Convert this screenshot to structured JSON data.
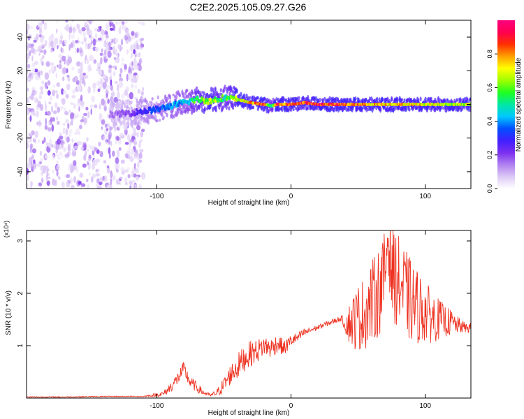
{
  "title": "C2E2.2025.105.09.27.G26",
  "colors": {
    "snr_line": "#ee3322",
    "axis": "#000000",
    "background": "#ffffff"
  },
  "chart_data": [
    {
      "type": "heatmap",
      "title": "C2E2.2025.105.09.27.G26",
      "xlabel": "Height of straight line (km)",
      "ylabel": "Frequency (Hz)",
      "xlim": [
        -197,
        134
      ],
      "ylim": [
        -50,
        50
      ],
      "xticks": [
        -100,
        0,
        100
      ],
      "xtick_labels": [
        "-100",
        "0",
        "100"
      ],
      "yticks": [
        40,
        20,
        0,
        -20,
        -40
      ],
      "ytick_labels": [
        "40",
        "20",
        "0",
        "-20",
        "-40"
      ],
      "colorbar": {
        "label": "Normalized spectral amplitude",
        "range": [
          0,
          1
        ],
        "ticks": [
          0.0,
          0.2,
          0.4,
          0.6,
          0.8
        ],
        "tick_labels": [
          "0.0",
          "0.2",
          "0.4",
          "0.6",
          "0.8"
        ],
        "colormap": [
          "#ffffff",
          "#dcc8f5",
          "#b080f0",
          "#7b2ff0",
          "#4020ff",
          "#0050ff",
          "#00c8ff",
          "#00e8a0",
          "#20ff20",
          "#a0ff00",
          "#ffff00",
          "#ffa000",
          "#ff3000",
          "#ff0050",
          "#ff0080"
        ]
      },
      "ridge": {
        "x": [
          -135,
          -120,
          -110,
          -100,
          -90,
          -80,
          -70,
          -60,
          -50,
          -40,
          -30,
          -20,
          -15,
          -10,
          0,
          10,
          20,
          40,
          60,
          80,
          100,
          120,
          134
        ],
        "frequency": [
          -6,
          -5,
          -4,
          -3,
          -1,
          1,
          3,
          2,
          4,
          3,
          1,
          0,
          -1,
          0,
          0,
          1,
          0,
          0,
          0,
          0,
          0,
          0,
          0
        ],
        "amplitude": [
          0.15,
          0.2,
          0.3,
          0.35,
          0.4,
          0.45,
          0.6,
          0.7,
          0.55,
          0.7,
          0.8,
          0.9,
          0.5,
          0.9,
          0.85,
          0.9,
          0.95,
          0.85,
          0.8,
          0.8,
          0.75,
          0.7,
          0.7
        ]
      },
      "noise_region_x": [
        -197,
        -110
      ]
    },
    {
      "type": "line",
      "xlabel": "Height of straight line (km)",
      "ylabel": "SNR (10 * v/v)",
      "y_multiplier": "(x10⁴)",
      "xlim": [
        -197,
        134
      ],
      "ylim": [
        0,
        3.2
      ],
      "xticks": [
        -100,
        0,
        100
      ],
      "xtick_labels": [
        "-100",
        "0",
        "100"
      ],
      "yticks": [
        1,
        2,
        3
      ],
      "ytick_labels": [
        "1",
        "2",
        "3"
      ],
      "series": [
        {
          "x": [
            -197,
            -170,
            -140,
            -110,
            -95,
            -90,
            -85,
            -80,
            -75,
            -70,
            -65,
            -60,
            -55,
            -50,
            -45,
            -40,
            -35,
            -30,
            -25,
            -20,
            -15,
            -10,
            -5,
            0,
            5,
            10,
            15,
            20,
            25,
            30,
            35,
            38,
            40,
            45,
            50,
            55,
            60,
            65,
            70,
            72,
            75,
            80,
            85,
            90,
            95,
            100,
            105,
            110,
            115,
            120,
            125,
            130,
            134
          ],
          "y": [
            0.02,
            0.02,
            0.03,
            0.03,
            0.08,
            0.2,
            0.35,
            0.55,
            0.3,
            0.2,
            0.1,
            0.05,
            0.1,
            0.25,
            0.45,
            0.6,
            0.75,
            0.85,
            0.9,
            1.0,
            0.95,
            1.05,
            0.95,
            1.1,
            1.15,
            1.25,
            1.3,
            1.35,
            1.4,
            1.45,
            1.5,
            1.52,
            1.4,
            1.5,
            1.6,
            1.7,
            1.9,
            2.1,
            2.4,
            3.2,
            2.5,
            2.3,
            2.1,
            1.9,
            1.8,
            1.7,
            1.6,
            1.55,
            1.5,
            1.45,
            1.4,
            1.35,
            1.35
          ],
          "noise_amplitude": [
            0.01,
            0.01,
            0.01,
            0.01,
            0.05,
            0.1,
            0.12,
            0.15,
            0.12,
            0.1,
            0.05,
            0.03,
            0.08,
            0.15,
            0.2,
            0.25,
            0.25,
            0.25,
            0.22,
            0.2,
            0.2,
            0.18,
            0.15,
            0.12,
            0.1,
            0.08,
            0.06,
            0.05,
            0.05,
            0.05,
            0.05,
            0.05,
            0.15,
            0.5,
            0.65,
            0.7,
            0.8,
            0.85,
            0.9,
            0.6,
            0.9,
            0.9,
            0.85,
            0.8,
            0.7,
            0.6,
            0.5,
            0.4,
            0.3,
            0.25,
            0.15,
            0.1,
            0.1
          ]
        }
      ]
    }
  ]
}
